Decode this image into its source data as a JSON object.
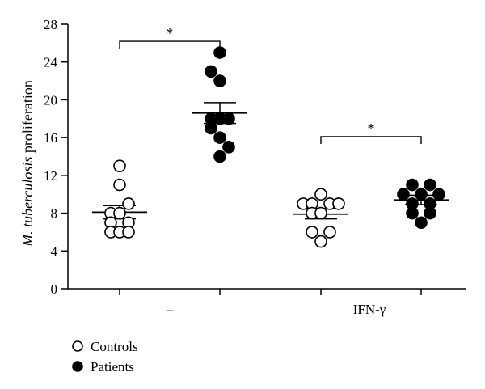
{
  "chart_data": {
    "type": "scatter",
    "ylabel_italic": "M. tuberculosis",
    "ylabel_rest": " proliferation",
    "ylim": [
      0,
      28
    ],
    "yticks": [
      0,
      4,
      8,
      12,
      16,
      20,
      24,
      28
    ],
    "groups": [
      "–",
      "IFN-γ"
    ],
    "legend": {
      "position": "bottom-left"
    },
    "series": [
      {
        "name": "Controls",
        "marker": "open-circle",
        "color": "#000000"
      },
      {
        "name": "Patients",
        "marker": "filled-circle",
        "color": "#000000"
      }
    ],
    "columns": [
      {
        "group": 0,
        "series": 0,
        "mean": 8.1,
        "sem_low": 7.4,
        "sem_high": 8.8,
        "points": [
          [
            0,
            13
          ],
          [
            0,
            11
          ],
          [
            1,
            9
          ],
          [
            -1,
            8
          ],
          [
            0,
            8
          ],
          [
            -1,
            7
          ],
          [
            1,
            7
          ],
          [
            -1,
            6
          ],
          [
            0,
            6
          ],
          [
            1,
            6
          ]
        ]
      },
      {
        "group": 0,
        "series": 1,
        "mean": 18.6,
        "sem_low": 17.5,
        "sem_high": 19.7,
        "points": [
          [
            0,
            25
          ],
          [
            -1,
            23
          ],
          [
            0,
            22
          ],
          [
            -1,
            18
          ],
          [
            0,
            18
          ],
          [
            1,
            18
          ],
          [
            -1,
            17
          ],
          [
            0,
            16
          ],
          [
            1,
            15
          ],
          [
            0,
            14
          ]
        ]
      },
      {
        "group": 1,
        "series": 0,
        "mean": 7.9,
        "sem_low": 7.4,
        "sem_high": 8.5,
        "points": [
          [
            0,
            10
          ],
          [
            -2,
            9
          ],
          [
            -1,
            9
          ],
          [
            1,
            9
          ],
          [
            2,
            9
          ],
          [
            -1,
            8
          ],
          [
            0,
            8
          ],
          [
            -1,
            6
          ],
          [
            1,
            6
          ],
          [
            0,
            5
          ]
        ]
      },
      {
        "group": 1,
        "series": 1,
        "mean": 9.4,
        "sem_low": 8.9,
        "sem_high": 9.9,
        "points": [
          [
            -1,
            11
          ],
          [
            1,
            11
          ],
          [
            -2,
            10
          ],
          [
            0,
            10
          ],
          [
            2,
            10
          ],
          [
            -1,
            9
          ],
          [
            1,
            9
          ],
          [
            -1,
            8
          ],
          [
            1,
            8
          ],
          [
            0,
            7
          ]
        ]
      }
    ],
    "significance": [
      {
        "from_column": 0,
        "to_column": 1,
        "y": 26.2,
        "label": "*"
      },
      {
        "from_column": 2,
        "to_column": 3,
        "y": 16.1,
        "label": "*"
      }
    ]
  }
}
